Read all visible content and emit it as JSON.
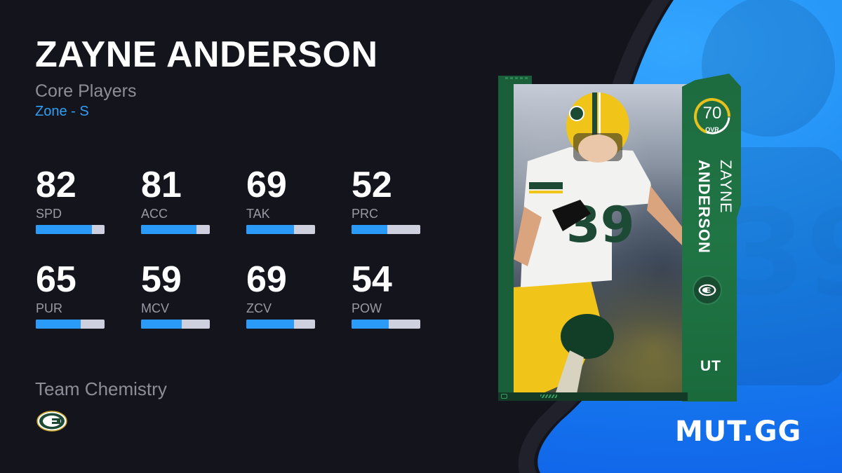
{
  "header": {
    "player_name": "ZAYNE ANDERSON",
    "program": "Core Players",
    "archetype": "Zone - S"
  },
  "stats": [
    {
      "label": "SPD",
      "value": "82",
      "pct": 82
    },
    {
      "label": "ACC",
      "value": "81",
      "pct": 81
    },
    {
      "label": "TAK",
      "value": "69",
      "pct": 69
    },
    {
      "label": "PRC",
      "value": "52",
      "pct": 52
    },
    {
      "label": "PUR",
      "value": "65",
      "pct": 65
    },
    {
      "label": "MCV",
      "value": "59",
      "pct": 59
    },
    {
      "label": "ZCV",
      "value": "69",
      "pct": 69
    },
    {
      "label": "POW",
      "value": "54",
      "pct": 54
    }
  ],
  "team_chemistry": {
    "title": "Team Chemistry",
    "team_icon": "packers-g-logo-icon"
  },
  "card": {
    "ovr": "70",
    "ovr_label": "OVR",
    "first_name": "ZAYNE",
    "last_name": "ANDERSON",
    "badge": "UT",
    "jersey_number": "39",
    "team_icon": "packers-g-logo-icon"
  },
  "brand": {
    "logo_text": "MUT.GG"
  },
  "colors": {
    "background": "#14141d",
    "accent_blue": "#2a9bf8",
    "bar_track": "#cfd0df",
    "card_green": "#1d6b3f",
    "ovr_gold": "#e6c11d",
    "subtitle_gray": "#8e8e99"
  }
}
